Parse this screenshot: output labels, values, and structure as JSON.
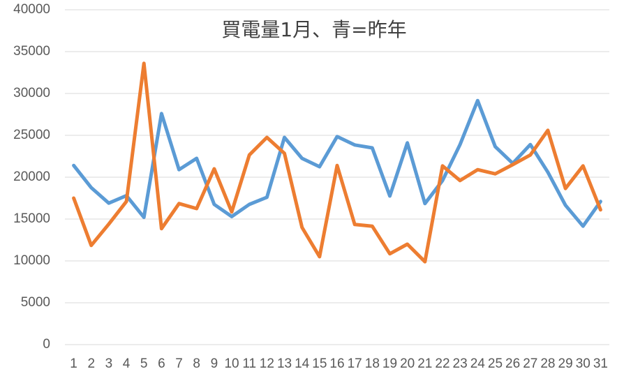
{
  "chart_data": {
    "type": "line",
    "title": "買電量1月、青=昨年",
    "categories": [
      1,
      2,
      3,
      4,
      5,
      6,
      7,
      8,
      9,
      10,
      11,
      12,
      13,
      14,
      15,
      16,
      17,
      18,
      19,
      20,
      21,
      22,
      23,
      24,
      25,
      26,
      27,
      28,
      29,
      30,
      31
    ],
    "series": [
      {
        "color": "#5b9bd5",
        "values": [
          21400,
          18750,
          16900,
          17800,
          15200,
          27600,
          20900,
          22250,
          16750,
          15300,
          16750,
          17600,
          24750,
          22250,
          21250,
          24850,
          23850,
          23500,
          17750,
          24100,
          16850,
          19600,
          23900,
          29150,
          23650,
          21650,
          23900,
          20600,
          16650,
          14150,
          17100
        ]
      },
      {
        "color": "#ed7d31",
        "values": [
          17500,
          11850,
          14400,
          17100,
          33600,
          13850,
          16850,
          16250,
          21000,
          15850,
          22650,
          24750,
          22850,
          14000,
          10500,
          21400,
          14350,
          14150,
          10850,
          12000,
          9900,
          21350,
          19600,
          20900,
          20400,
          21500,
          22650,
          25600,
          18650,
          21350,
          16100
        ]
      }
    ],
    "ylim": [
      0,
      40000
    ],
    "yticks": [
      0,
      5000,
      10000,
      15000,
      20000,
      25000,
      30000,
      35000,
      40000
    ],
    "grid": true
  }
}
